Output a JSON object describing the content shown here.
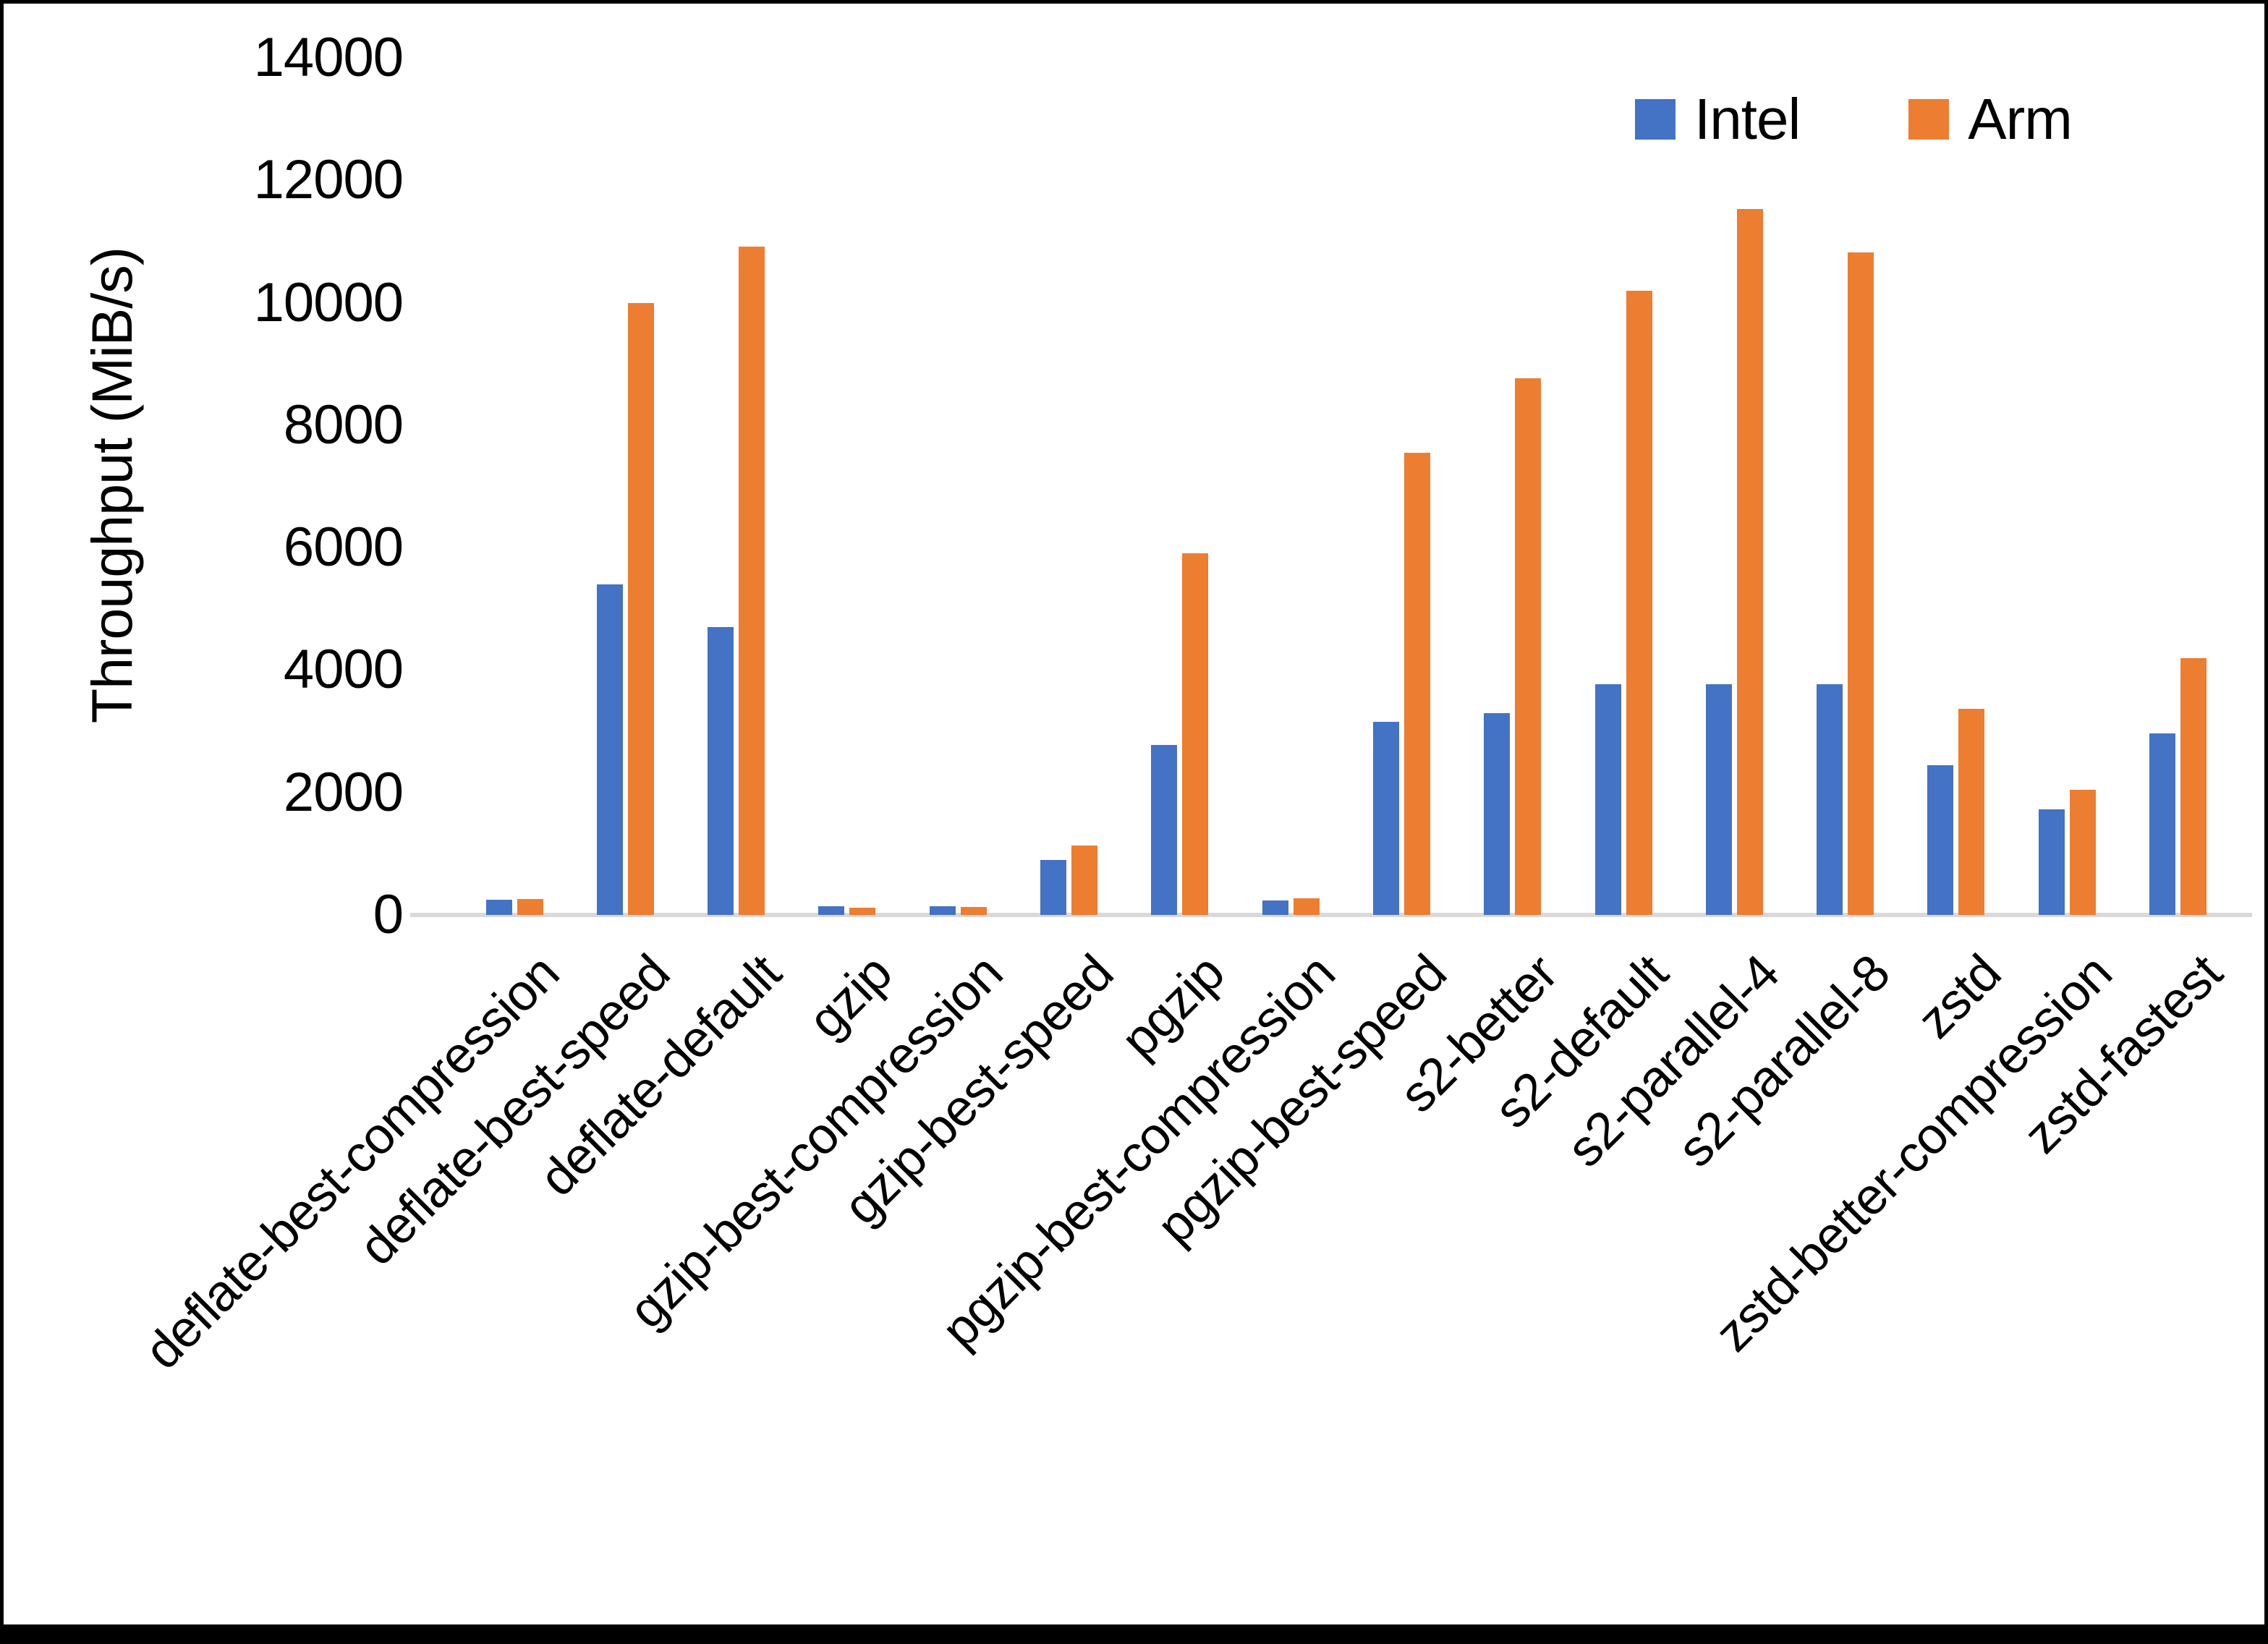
{
  "chart_data": {
    "type": "bar",
    "title": "",
    "xlabel": "",
    "ylabel": "Throughput (MiB/s)",
    "ylim": [
      0,
      14000
    ],
    "yticks": [
      0,
      2000,
      4000,
      6000,
      8000,
      10000,
      12000,
      14000
    ],
    "grid": false,
    "legend_position": "top-right",
    "categories": [
      "deflate-best-compression",
      "deflate-best-speed",
      "deflate-default",
      "gzip",
      "gzip-best-compression",
      "gzip-best-speed",
      "pgzip",
      "pgzip-best-compression",
      "pgzip-best-speed",
      "s2-better",
      "s2-default",
      "s2-parallel-4",
      "s2-parallel-8",
      "zstd",
      "zstd-better-compression",
      "zstd-fastest"
    ],
    "series": [
      {
        "name": "Intel",
        "color": "#4472C4",
        "values": [
          250,
          5400,
          4700,
          140,
          140,
          900,
          2780,
          240,
          3160,
          3300,
          3770,
          3770,
          3770,
          2450,
          1730,
          2960
        ]
      },
      {
        "name": "Arm",
        "color": "#ED7D31",
        "values": [
          260,
          10000,
          10920,
          115,
          125,
          1140,
          5910,
          270,
          7550,
          8770,
          10200,
          11530,
          10820,
          3370,
          2040,
          4190
        ]
      }
    ]
  },
  "legend": {
    "items": [
      {
        "label": "Intel",
        "color": "#4472C4"
      },
      {
        "label": "Arm",
        "color": "#ED7D31"
      }
    ]
  },
  "axis": {
    "baseline_color": "#D9D9D9",
    "text_color": "#000000"
  }
}
